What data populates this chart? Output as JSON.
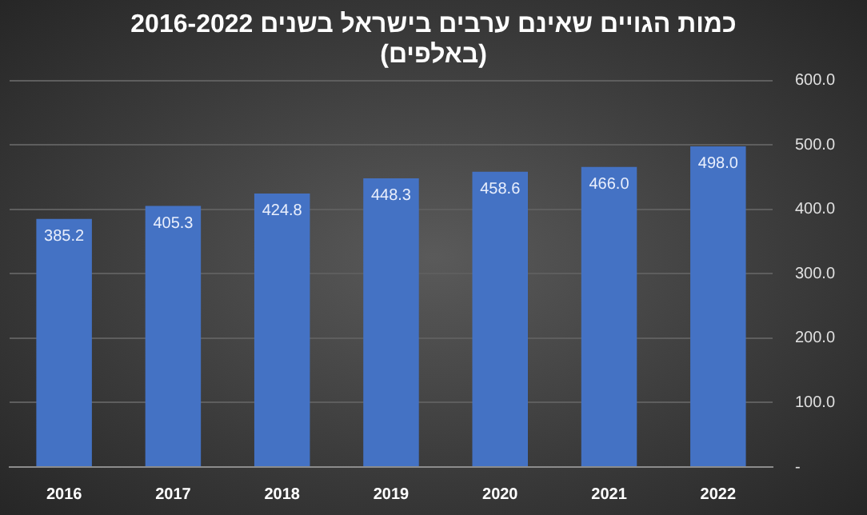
{
  "chart_data": {
    "type": "bar",
    "title": "כמות הגויים שאינם ערבים בישראל בשנים 2016-2022",
    "subtitle": "(באלפים)",
    "categories": [
      "2016",
      "2017",
      "2018",
      "2019",
      "2020",
      "2021",
      "2022"
    ],
    "values": [
      385.2,
      405.3,
      424.8,
      448.3,
      458.6,
      466.0,
      498.0
    ],
    "value_labels": [
      "385.2",
      "405.3",
      "424.8",
      "448.3",
      "458.6",
      "466.0",
      "498.0"
    ],
    "color": "#4472c4",
    "ylim": [
      0,
      600
    ],
    "yticks": [
      {
        "value": 0,
        "label": "-"
      },
      {
        "value": 100,
        "label": "100.0"
      },
      {
        "value": 200,
        "label": "200.0"
      },
      {
        "value": 300,
        "label": "300.0"
      },
      {
        "value": 400,
        "label": "400.0"
      },
      {
        "value": 500,
        "label": "500.0"
      },
      {
        "value": 600,
        "label": "600.0"
      }
    ],
    "grid": "y",
    "legend": false
  }
}
